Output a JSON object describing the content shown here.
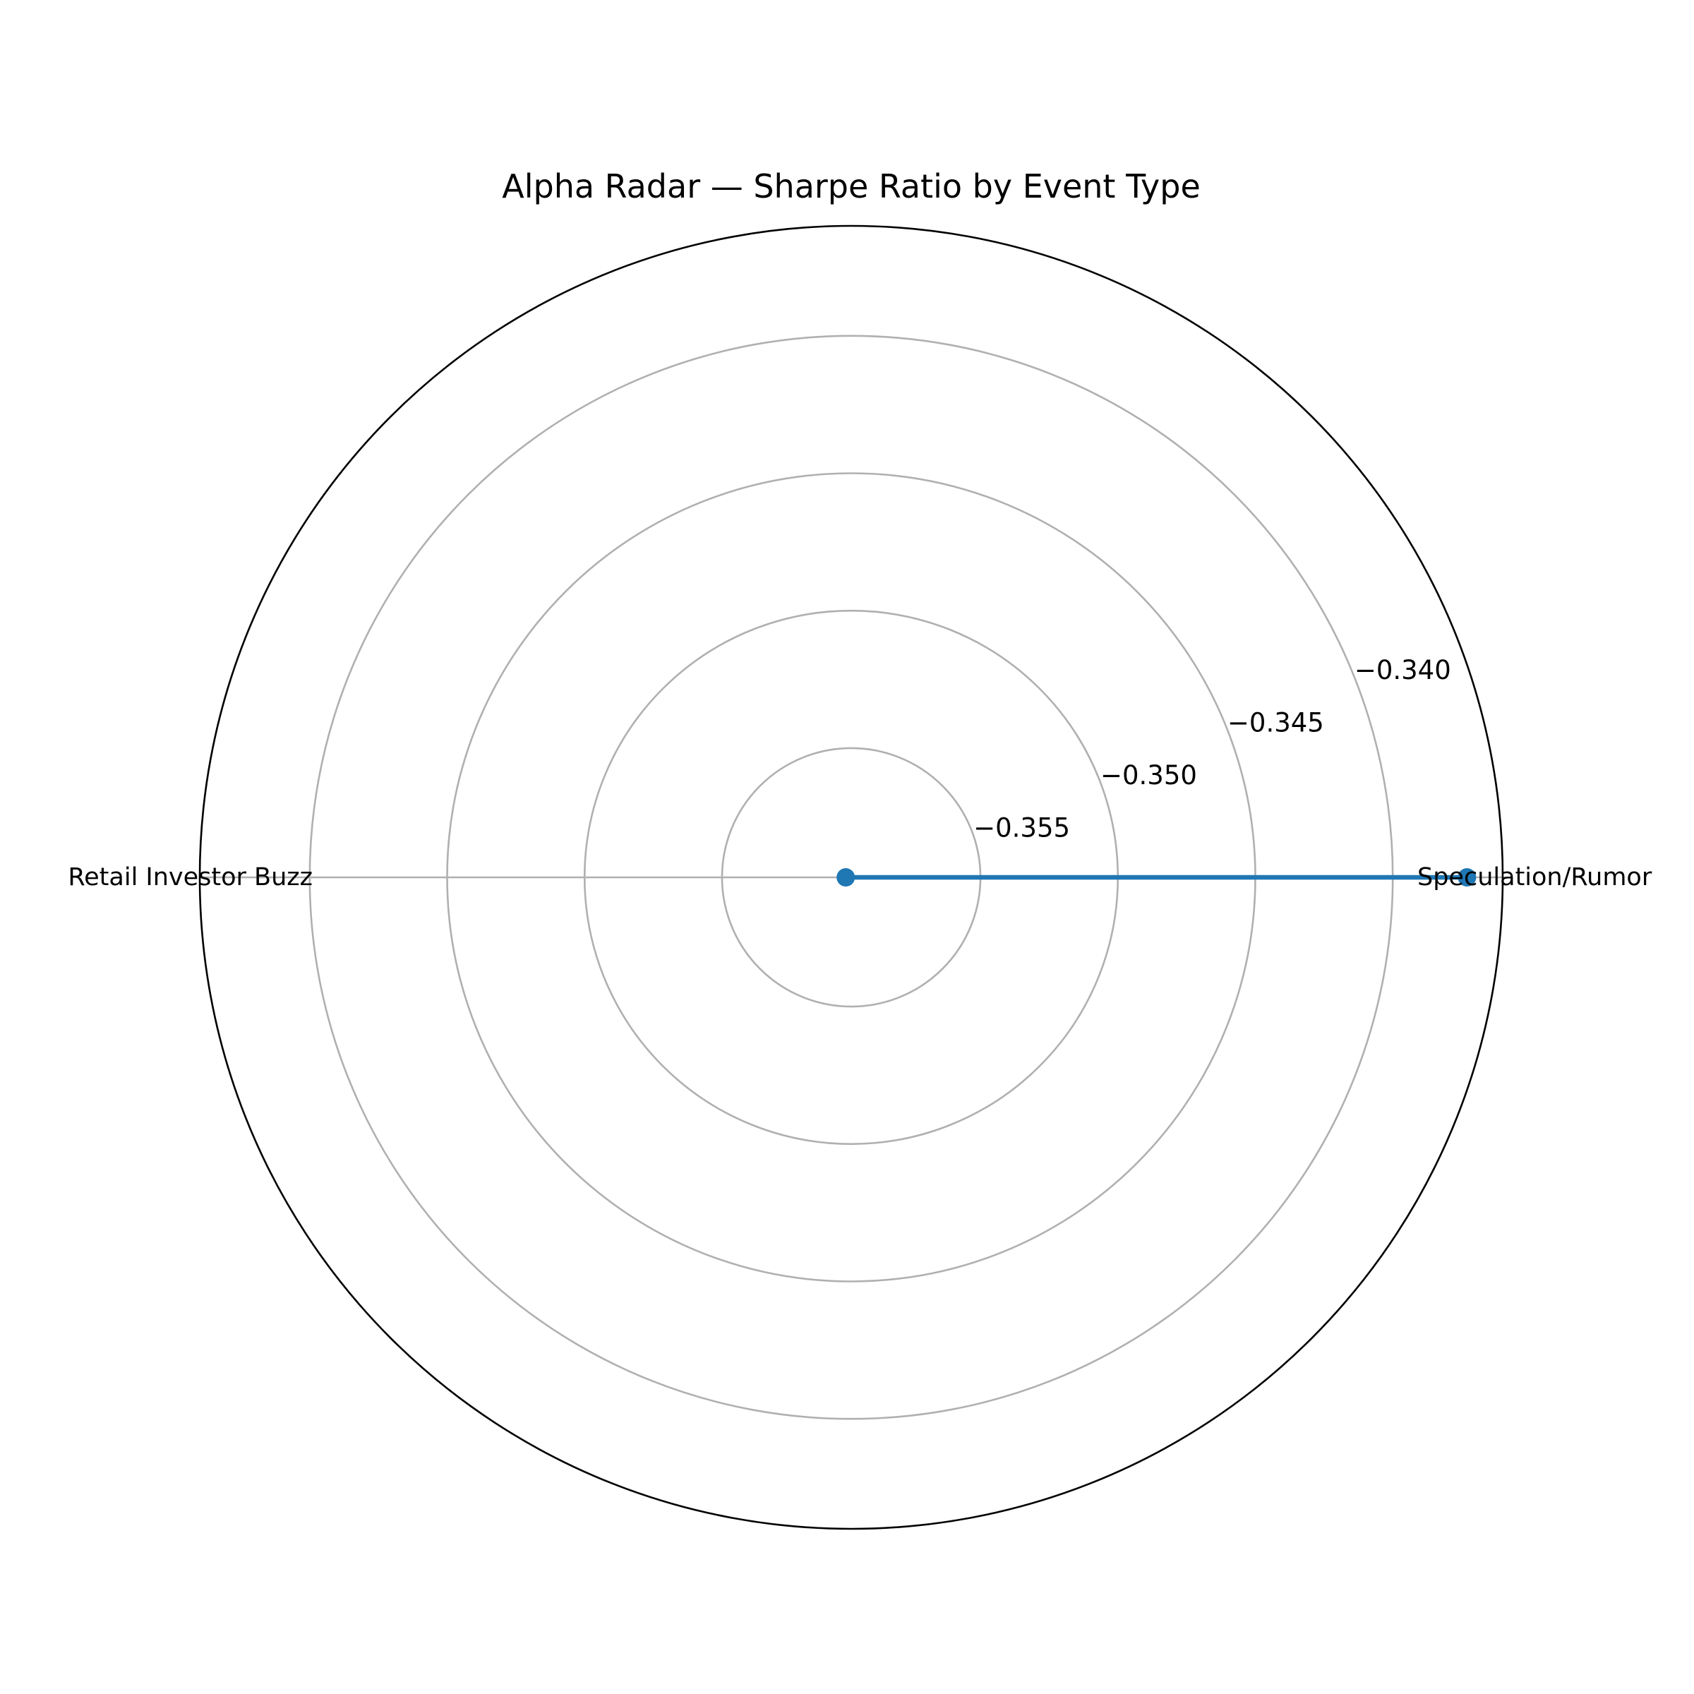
{
  "chart_data": {
    "type": "radar",
    "title": "Alpha Radar — Sharpe Ratio by Event Type",
    "categories": [
      "Speculation/Rumor",
      "Retail Investor Buzz"
    ],
    "series": [
      {
        "values": [
          -0.3373,
          -0.3595
        ],
        "color": "#1f77b4"
      }
    ],
    "r_ticks": [
      -0.355,
      -0.35,
      -0.345,
      -0.34
    ],
    "r_tick_labels": [
      "−0.355",
      "−0.350",
      "−0.345",
      "−0.340"
    ],
    "rlim": [
      -0.3597,
      -0.336
    ],
    "grid": true,
    "legend": "none",
    "colors": {
      "grid": "#b0b0b0",
      "frame": "#000000",
      "series": "#1f77b4"
    }
  }
}
